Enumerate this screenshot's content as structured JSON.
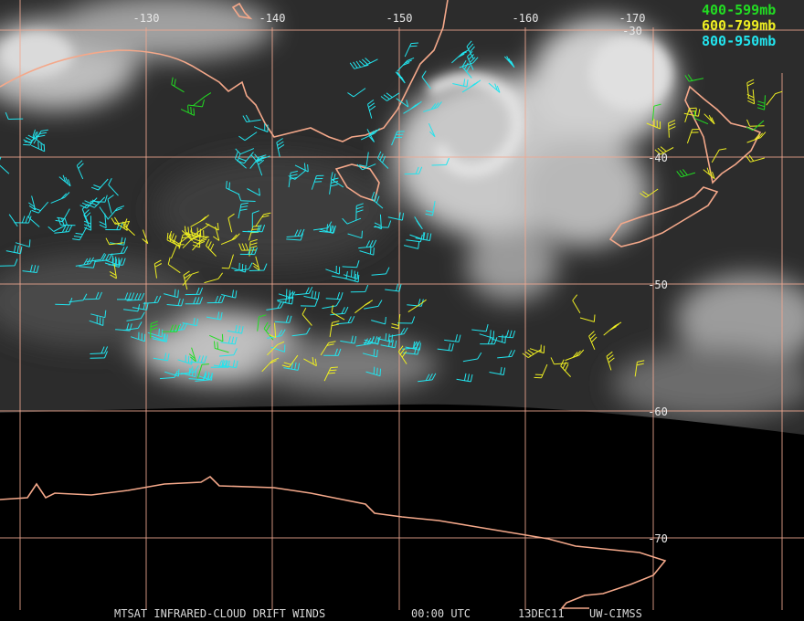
{
  "map": {
    "longitude_labels": [
      "-130",
      "-140",
      "-150",
      "-160",
      "-170"
    ],
    "latitude_labels": [
      "-30",
      "-40",
      "-50",
      "-60",
      "-70"
    ],
    "legend": [
      "400-599mb",
      "600-799mb",
      "800-950mb"
    ],
    "footer": [
      "MTSAT INFRARED-CLOUD DRIFT WINDS",
      "00:00 UTC",
      "13DEC11",
      "UW-CIMSS"
    ]
  }
}
